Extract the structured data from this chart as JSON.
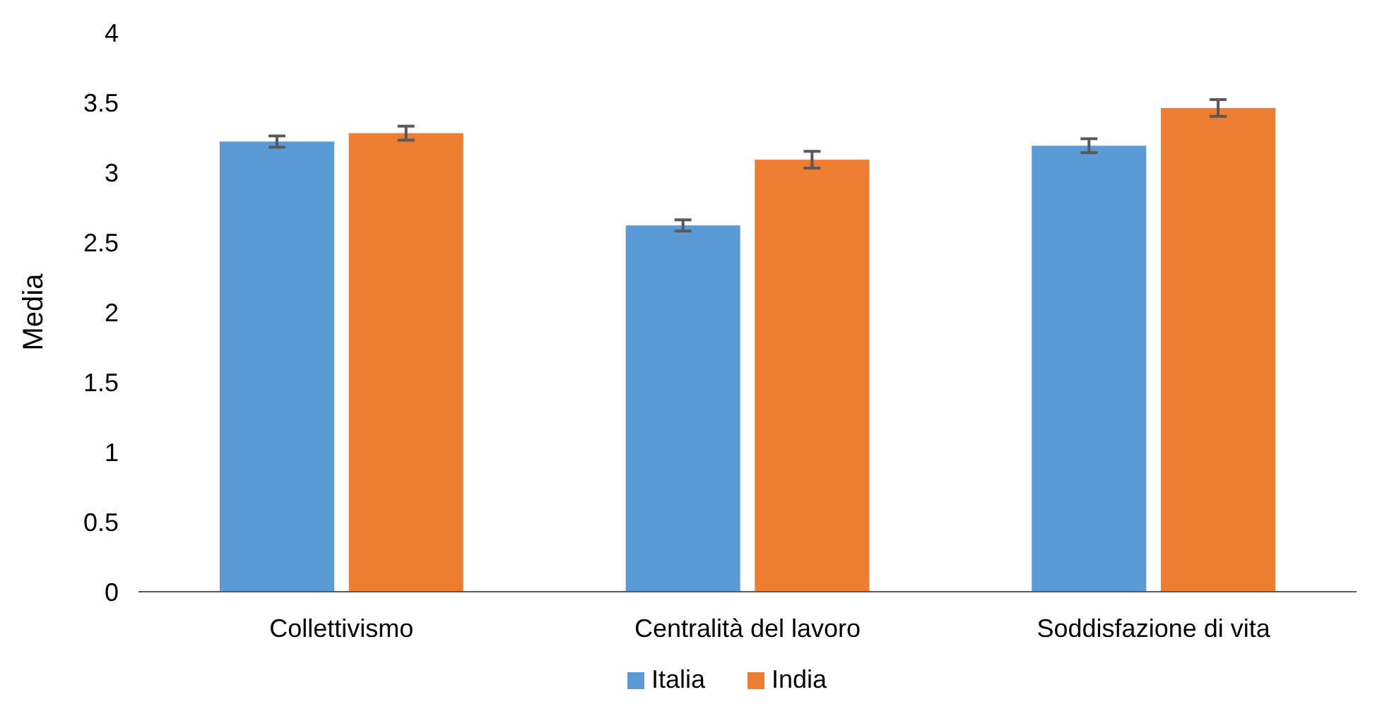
{
  "chart_data": {
    "type": "bar",
    "ylabel": "Media",
    "categories": [
      "Collettivismo",
      "Centralità del lavoro",
      "Soddisfazione di vita"
    ],
    "series": [
      {
        "name": "Italia",
        "color": "#5b9bd5",
        "values": [
          3.22,
          2.62,
          3.19
        ],
        "errors": [
          0.04,
          0.04,
          0.05
        ]
      },
      {
        "name": "India",
        "color": "#ed7d31",
        "values": [
          3.28,
          3.09,
          3.46
        ],
        "errors": [
          0.05,
          0.06,
          0.06
        ]
      }
    ],
    "ylim": [
      0,
      4
    ],
    "yticks": [
      0,
      0.5,
      1,
      1.5,
      2,
      2.5,
      3,
      3.5,
      4
    ],
    "grid": false,
    "legend": "bottom"
  }
}
